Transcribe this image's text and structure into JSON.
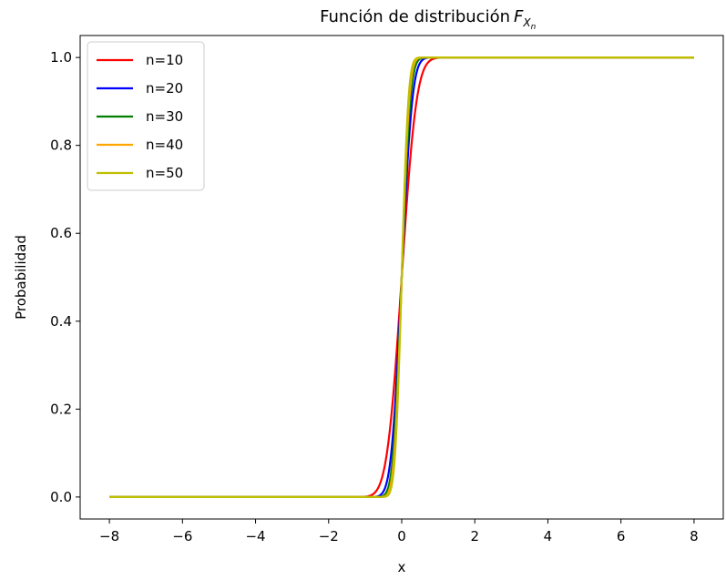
{
  "chart_data": {
    "type": "line",
    "title": "Función de distribución",
    "title_math": {
      "base": "F",
      "sub": "X",
      "subsub": "n"
    },
    "xlabel": "x",
    "ylabel": "Probabilidad",
    "xlim": [
      -8.8,
      8.8
    ],
    "ylim": [
      -0.05,
      1.05
    ],
    "xticks": [
      -8,
      -6,
      -4,
      -2,
      0,
      2,
      4,
      6,
      8
    ],
    "xtick_labels": [
      "−8",
      "−6",
      "−4",
      "−2",
      "0",
      "2",
      "4",
      "6",
      "8"
    ],
    "yticks": [
      0.0,
      0.2,
      0.4,
      0.6,
      0.8,
      1.0
    ],
    "ytick_labels": [
      "0.0",
      "0.2",
      "0.4",
      "0.6",
      "0.8",
      "1.0"
    ],
    "x_range": [
      -8,
      8
    ],
    "grid": false,
    "legend_position": "upper-left",
    "series": [
      {
        "name": "n=10",
        "color": "#ff0000",
        "n": 10
      },
      {
        "name": "n=20",
        "color": "#0000ff",
        "n": 20
      },
      {
        "name": "n=30",
        "color": "#008000",
        "n": 30
      },
      {
        "name": "n=40",
        "color": "#ffa500",
        "n": 40
      },
      {
        "name": "n=50",
        "color": "#bfbf00",
        "n": 50
      }
    ]
  }
}
